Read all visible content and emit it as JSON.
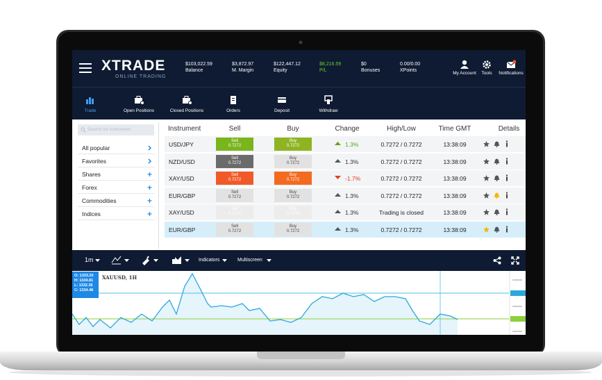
{
  "header": {
    "logo": "XTRADE",
    "tagline": "ONLINE TRADING",
    "stats": [
      {
        "value": "$103,022.59",
        "label": "Balance"
      },
      {
        "value": "$3,872.97",
        "label": "M. Margin"
      },
      {
        "value": "$122,447.12",
        "label": "Equity"
      },
      {
        "value": "$8,216.59",
        "label": "P/L"
      },
      {
        "value": "$0",
        "label": "Bonuses"
      },
      {
        "value": "0.00/0.00",
        "label": "XPoints"
      }
    ],
    "actions": [
      "My Account",
      "Tools",
      "Notifications"
    ]
  },
  "nav": [
    "Trade",
    "Open Positions",
    "Closed Positions",
    "Orders",
    "Deposit",
    "Withdraw"
  ],
  "sidebar": {
    "search": "Search for instrument",
    "items": [
      "All popular",
      "Favorites",
      "Shares",
      "Forex",
      "Commodities",
      "Indices"
    ]
  },
  "table": {
    "columns": [
      "Instrument",
      "Sell",
      "Buy",
      "Change",
      "High/Low",
      "Time GMT",
      "Details"
    ],
    "rows": [
      {
        "instrument": "USD/JPY",
        "sell_label": "Sell",
        "sell": "0.7272",
        "buy_label": "Buy",
        "buy": "0.7272",
        "change": "1.3%",
        "high_low": "0.7272 / 0.7272",
        "time": "13:38:09"
      },
      {
        "instrument": "NZD/USD",
        "sell_label": "Sell",
        "sell": "0.7272",
        "buy_label": "Buy",
        "buy": "0.7272",
        "change": "1.3%",
        "high_low": "0.7272 / 0.7272",
        "time": "13:38:09"
      },
      {
        "instrument": "XAY/USD",
        "sell_label": "Sell",
        "sell": "0.7272",
        "buy_label": "Buy",
        "buy": "0.7272",
        "change": "-1.7%",
        "high_low": "0.7272 / 0.7272",
        "time": "13:38:09"
      },
      {
        "instrument": "EUR/GBP",
        "sell_label": "Sell",
        "sell": "0.7272",
        "buy_label": "Buy",
        "buy": "0.7272",
        "change": "1.3%",
        "high_low": "0.7272 / 0.7272",
        "time": "13:38:09"
      },
      {
        "instrument": "XAY/USD",
        "sell_label": "Sell",
        "sell": "0.7272",
        "buy_label": "Buy",
        "buy": "0.7272",
        "change": "1.3%",
        "high_low": "Trading is closed",
        "time": "13:38:09"
      },
      {
        "instrument": "EUR/GBP",
        "sell_label": "Sell",
        "sell": "0.7272",
        "buy_label": "Buy",
        "buy": "0.7272",
        "change": "1.3%",
        "high_low": "0.7272 / 0.7272",
        "time": "13:38:09"
      }
    ]
  },
  "toolbar": [
    "1m",
    "Indicators",
    "Multiscreen"
  ],
  "chart": {
    "symbol": "XAUUSD, 1H",
    "ohlc": [
      "O: 1333.20",
      "H: 1334.81",
      "L: 1332.35",
      "C: 1334.48"
    ]
  }
}
